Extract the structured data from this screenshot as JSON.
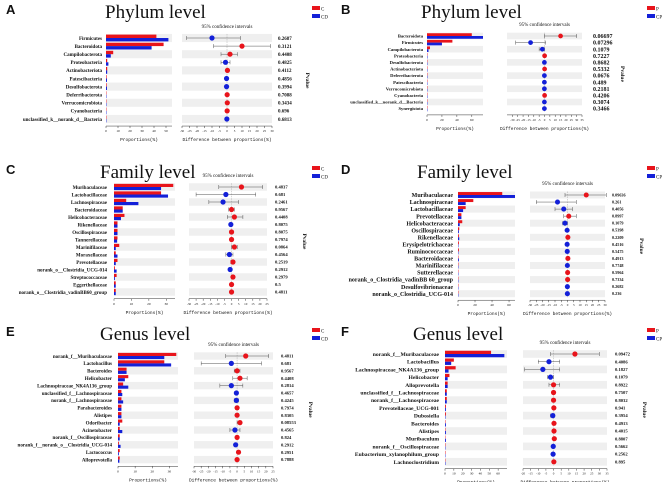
{
  "colors": {
    "group1": "#e8141b",
    "group2": "#1320d8",
    "row_shade": "#efefef",
    "ci": "#555555"
  },
  "chart_data": [
    {
      "type": "extended-error-bar",
      "panel": "A",
      "title": "Phylum level",
      "groups": [
        "C",
        "CD"
      ],
      "ci_label": "95% confidence intervals",
      "xlabel": "Proportions(%)",
      "diff_xlabel": "Difference between proportions(%)",
      "ylabel": "Pvalue",
      "prop_range": [
        0,
        55
      ],
      "prop_ticks": [
        0,
        10,
        20,
        30,
        40,
        50
      ],
      "diff_range": [
        -30,
        30
      ],
      "diff_ticks": [
        -30,
        -25,
        -20,
        -15,
        -10,
        -5,
        0,
        5,
        10,
        15,
        20,
        25,
        30
      ],
      "categories": [
        "Firmicutes",
        "Bacteroidota",
        "Campilobacterota",
        "Proteobacteria",
        "Actinobacteriota",
        "Patescibacteria",
        "Desulfobacterota",
        "Deferribacterota",
        "Verrucomicrobiota",
        "Cyanobacteria",
        "unclassified_k__norank_d__Bacteria"
      ],
      "group1_values": [
        42,
        48,
        6,
        1,
        1,
        0.5,
        0.5,
        0.3,
        0.3,
        0.2,
        0.1
      ],
      "group2_values": [
        52,
        38,
        4,
        2,
        1,
        0.8,
        0.8,
        0.2,
        0.2,
        0.1,
        0.2
      ],
      "diff": [
        -10,
        10,
        2,
        -1,
        0.3,
        -0.3,
        -0.3,
        0.1,
        0.2,
        0.1,
        -0.1
      ],
      "ci_low": [
        -27,
        -9,
        -4,
        -4,
        -0.5,
        -0.8,
        -0.8,
        -0.3,
        -0.3,
        -0.3,
        -0.4
      ],
      "ci_high": [
        9,
        29,
        7,
        2,
        1,
        0.3,
        0.3,
        0.4,
        0.6,
        0.4,
        0.2
      ],
      "pvalues": [
        "0.2687",
        "0.3121",
        "0.4408",
        "0.4825",
        "0.4112",
        "0.4856",
        "0.3994",
        "0.7088",
        "0.3434",
        "0.696",
        "0.6813"
      ]
    },
    {
      "type": "extended-error-bar",
      "panel": "B",
      "title": "Phylum level",
      "groups": [
        "P",
        "CP"
      ],
      "ci_label": "95% confidence intervals",
      "xlabel": "Proportions(%)",
      "diff_xlabel": "Difference between proportions(%)",
      "ylabel": "Pvalue",
      "prop_range": [
        0,
        75
      ],
      "prop_ticks": [
        0,
        20,
        40,
        60
      ],
      "diff_range": [
        -35,
        35
      ],
      "diff_ticks": [
        -30,
        -25,
        -20,
        -15,
        -10,
        -5,
        0,
        5,
        10,
        15,
        20,
        25,
        30,
        35
      ],
      "categories": [
        "Bacteroidota",
        "Firmicutes",
        "Campilobacterota",
        "Proteobacteria",
        "Desulfobacterota",
        "Actinobacteriota",
        "Deferribacterota",
        "Patescibacteria",
        "Verrucomicrobiota",
        "Cyanobacteria",
        "unclassified_k__norank_d__Bacteria",
        "Synergistota"
      ],
      "group1_values": [
        60,
        34,
        4,
        0.5,
        0.5,
        0.5,
        0.4,
        0.3,
        0.3,
        0.2,
        0.2,
        0.1
      ],
      "group2_values": [
        75,
        20,
        2,
        0.6,
        0.4,
        0.4,
        0.3,
        0.2,
        0.2,
        0.3,
        0.1,
        0.05
      ],
      "diff": [
        15,
        -13,
        -2,
        0.1,
        -0.1,
        0.1,
        -0.1,
        -0.1,
        -0.1,
        0.1,
        -0.1,
        -0.1
      ],
      "ci_low": [
        0,
        -27,
        -5,
        -0.5,
        -0.6,
        -0.4,
        -0.5,
        -0.5,
        -0.5,
        -0.4,
        -0.5,
        -0.4
      ],
      "ci_high": [
        30,
        1,
        0,
        0.6,
        0.4,
        0.6,
        0.3,
        0.3,
        0.3,
        0.5,
        0.3,
        0.2
      ],
      "pvalues": [
        "0.06697",
        "0.07296",
        "0.1079",
        "0.7227",
        "0.8682",
        "0.5332",
        "0.0676",
        "0.489",
        "0.2181",
        "0.4206",
        "0.3074",
        "0.3466"
      ]
    },
    {
      "type": "extended-error-bar",
      "panel": "C",
      "title": "Family level",
      "groups": [
        "C",
        "CD"
      ],
      "ci_label": "95% confidence intervals",
      "xlabel": "Proportions(%)",
      "diff_xlabel": "Difference between proportions(%)",
      "ylabel": "Pvalue",
      "prop_range": [
        0,
        35
      ],
      "prop_ticks": [
        0,
        10,
        20,
        30
      ],
      "diff_range": [
        -30,
        25
      ],
      "diff_ticks": [
        -30,
        -25,
        -20,
        -15,
        -10,
        -5,
        0,
        5,
        10,
        15,
        20,
        25
      ],
      "categories": [
        "Muribaculaceae",
        "Lactobacillaceae",
        "Lachnospiraceae",
        "Bacteroidaceae",
        "Helicobacteraceae",
        "Rikenellaceae",
        "Oscillospiraceae",
        "Tannerellaceae",
        "Marinifilaceae",
        "Moraxellaceae",
        "Prevotellaceae",
        "norank_o__Clostridia_UCG-014",
        "Streptococcaceae",
        "Eggerthellaceae",
        "norank_o__Clostridia_vadinBB60_group"
      ],
      "group1_values": [
        34,
        27,
        7,
        5,
        6,
        2,
        2,
        2,
        3,
        1,
        2,
        0.5,
        1.5,
        1,
        1
      ],
      "group2_values": [
        27,
        31,
        14,
        5,
        4,
        2,
        2,
        1.8,
        1,
        2,
        1,
        1.5,
        0.5,
        1,
        1
      ],
      "diff": [
        7,
        -4,
        -6,
        0,
        2,
        -0.5,
        0,
        0,
        2,
        -1.5,
        1,
        -1,
        1,
        0,
        0
      ],
      "ci_low": [
        -9,
        -25,
        -16,
        -2,
        -3,
        -1.5,
        -1.2,
        -1,
        0,
        -4,
        -0.5,
        -2,
        0,
        -0.6,
        -0.6
      ],
      "ci_high": [
        22,
        17,
        5,
        2,
        8,
        0.5,
        1.2,
        1,
        4,
        1,
        2,
        0,
        2,
        0.6,
        0.6
      ],
      "pvalues": [
        "0.4837",
        "0.681",
        "0.2461",
        "0.9567",
        "0.4408",
        "0.8075",
        "0.8075",
        "0.7974",
        "0.0864",
        "0.4564",
        "0.2519",
        "0.2912",
        "0.2979",
        "0.5",
        "0.4811"
      ]
    },
    {
      "type": "extended-error-bar",
      "panel": "D",
      "title": "Family level",
      "groups": [
        "P",
        "CP"
      ],
      "ci_label": "95% confidence intervals",
      "xlabel": "Proportions(%)",
      "diff_xlabel": "Difference between proportions(%)",
      "ylabel": "Pvalue",
      "prop_range": [
        0,
        67
      ],
      "prop_ticks": [
        0,
        20,
        40,
        60
      ],
      "diff_range": [
        -30,
        30
      ],
      "diff_ticks": [
        -30,
        -25,
        -20,
        -15,
        -10,
        -5,
        0,
        5,
        10,
        15,
        20,
        25,
        30
      ],
      "categories": [
        "Muribaculaceae",
        "Lachnospiraceae",
        "Lactobacillaceae",
        "Prevotellaceae",
        "Helicobacteraceae",
        "Oscillospiraceae",
        "Rikenellaceae",
        "Erysipelotrichaceae",
        "Ruminococcaceae",
        "Bacteroidaceae",
        "Marinifilaceae",
        "Sutterellaceae",
        "norank_o_Clostridia_vadinBB 60_group",
        "Desulfovibrionaceae",
        "norank_o_Clostridia_UCG-014"
      ],
      "group1_values": [
        52,
        18,
        9,
        4,
        5,
        1.5,
        1,
        1,
        1,
        0.5,
        0.5,
        0.3,
        0.2,
        0.2,
        0.2
      ],
      "group2_values": [
        67,
        9,
        6,
        4,
        2,
        1,
        1.5,
        0.5,
        0.5,
        1,
        0.3,
        0.3,
        0.4,
        0.1,
        0.1
      ],
      "diff": [
        15,
        -8,
        -3,
        1,
        -2,
        -0.3,
        0.3,
        -0.3,
        -0.2,
        0.3,
        -0.1,
        0.1,
        0.1,
        -0.1,
        -0.1
      ],
      "ci_low": [
        -2,
        -25,
        -10,
        -3,
        -4,
        -1,
        -0.5,
        -1,
        -1,
        -0.5,
        -0.6,
        -0.5,
        -0.5,
        -0.5,
        -0.5
      ],
      "ci_high": [
        31,
        7,
        4,
        7,
        0,
        0.5,
        1,
        0.4,
        0.5,
        1,
        0.4,
        0.6,
        0.6,
        0.3,
        0.3
      ],
      "pvalues": [
        "0.09636",
        "0.261",
        "0.4056",
        "0.8997",
        "0.1079",
        "0.5398",
        "0.2209",
        "0.4516",
        "0.5475",
        "0.4913",
        "0.7748",
        "0.5964",
        "0.7334",
        "0.2682",
        "0.236"
      ]
    },
    {
      "type": "extended-error-bar",
      "panel": "E",
      "title": "Genus level",
      "groups": [
        "C",
        "CD"
      ],
      "ci_label": "95% confidence intervals",
      "xlabel": "Proportions(%)",
      "diff_xlabel": "Difference between proportions(%)",
      "ylabel": "Pvalue",
      "prop_range": [
        0,
        35
      ],
      "prop_ticks": [
        0,
        10,
        20,
        30
      ],
      "diff_range": [
        -30,
        25
      ],
      "diff_ticks": [
        -30,
        -25,
        -20,
        -15,
        -10,
        -5,
        0,
        5,
        10,
        15,
        20,
        25
      ],
      "categories": [
        "norank_f__Muribaculaceae",
        "Lactobacillus",
        "Bacteroides",
        "Helicobacter",
        "Lachnospiraceae_NK4A136_group",
        "unclassified_f__Lachnospiraceae",
        "norank_f__Lachnospiraceae",
        "Parabacteroides",
        "Alistipes",
        "Odoribacter",
        "Acinetobacter",
        "norank_f__Oscillospiraceae",
        "norank_f__norank_o__Clostridia_UCG-014",
        "Lactococcus",
        "Alloprevotella"
      ],
      "group1_values": [
        34,
        27,
        5,
        6,
        3,
        2,
        2,
        2,
        2,
        2.5,
        1,
        1,
        0.5,
        1,
        1
      ],
      "group2_values": [
        27,
        31,
        5,
        4,
        6,
        2.5,
        3,
        2,
        2,
        1,
        2.5,
        1,
        1.5,
        0.5,
        0.8
      ],
      "diff": [
        6,
        -4,
        0,
        2,
        -4,
        -0.5,
        -0.5,
        0,
        0,
        2,
        -1.5,
        0,
        -1,
        1,
        0
      ],
      "ci_low": [
        -8,
        -25,
        -2,
        -3,
        -12,
        -1.5,
        -2,
        -1,
        -1,
        0,
        -5,
        -0.6,
        -2,
        0,
        -0.5
      ],
      "ci_high": [
        22,
        17,
        2,
        7,
        4,
        0.5,
        1,
        1,
        1,
        3,
        2,
        0.6,
        0,
        2,
        0.5
      ],
      "pvalues": [
        "0.4811",
        "0.681",
        "0.9567",
        "0.4408",
        "0.2814",
        "0.4657",
        "0.4245",
        "0.7974",
        "0.8305",
        "0.08553",
        "0.4565",
        "0.824",
        "0.2912",
        "0.2951",
        "0.7888"
      ]
    },
    {
      "type": "extended-error-bar",
      "panel": "F",
      "title": "Genus level",
      "groups": [
        "P",
        "CP"
      ],
      "ci_label": "95% confidence intervals",
      "xlabel": "Proportions(%)",
      "diff_xlabel": "Difference between proportions(%)",
      "ylabel": "Pvalue",
      "prop_range": [
        0,
        70
      ],
      "prop_ticks": [
        0,
        10,
        20,
        30,
        40,
        50,
        60
      ],
      "diff_range": [
        -20,
        35
      ],
      "diff_ticks": [
        -20,
        -15,
        -10,
        -5,
        0,
        5,
        10,
        15,
        20,
        25,
        30,
        35
      ],
      "categories": [
        "norank_f__Muribaculaceae",
        "Lactobacillus",
        "Lachnospiraceae_NK4A136_group",
        "Helicobacter",
        "Alloprevotella",
        "unclassified_f__Lachnospiraceae",
        "norank_f__Lachnospiraceae",
        "Prevotellaceae_UCG-001",
        "Dubosiella",
        "Bacteroides",
        "Alistipes",
        "Muribaculum",
        "norank_f__Oscillospiraceae",
        "Eubacterium_xylanophilum_group",
        "Lachnoclostridium"
      ],
      "group1_values": [
        52,
        10,
        12,
        5,
        3,
        2,
        2,
        1,
        1,
        0.5,
        0.5,
        0.3,
        0.5,
        0.5,
        0.3
      ],
      "group2_values": [
        67,
        7,
        4,
        3,
        3,
        2,
        2,
        1,
        0.5,
        1,
        1,
        1,
        0.3,
        0.2,
        0.5
      ],
      "diff": [
        14,
        -3,
        -7,
        -2,
        0,
        0,
        0,
        0.2,
        -0.5,
        0.3,
        0.3,
        0.5,
        -0.2,
        -0.3,
        0.2
      ],
      "ci_low": [
        -2,
        -10,
        -19,
        -4,
        -3,
        -1,
        -1,
        -0.5,
        -2,
        -0.3,
        -0.3,
        -0.2,
        -0.8,
        -0.8,
        -0.3
      ],
      "ci_high": [
        30,
        4,
        4,
        0,
        4,
        1,
        1,
        0.8,
        0.8,
        0.8,
        0.8,
        1,
        0.5,
        0.2,
        0.6
      ],
      "pvalues": [
        "0.09472",
        "0.4086",
        "0.1827",
        "0.1079",
        "0.8922",
        "0.7507",
        "0.8032",
        "0.941",
        "0.3954",
        "0.4913",
        "0.4015",
        "0.8807",
        "0.5662",
        "0.2562",
        "0.895"
      ]
    }
  ]
}
